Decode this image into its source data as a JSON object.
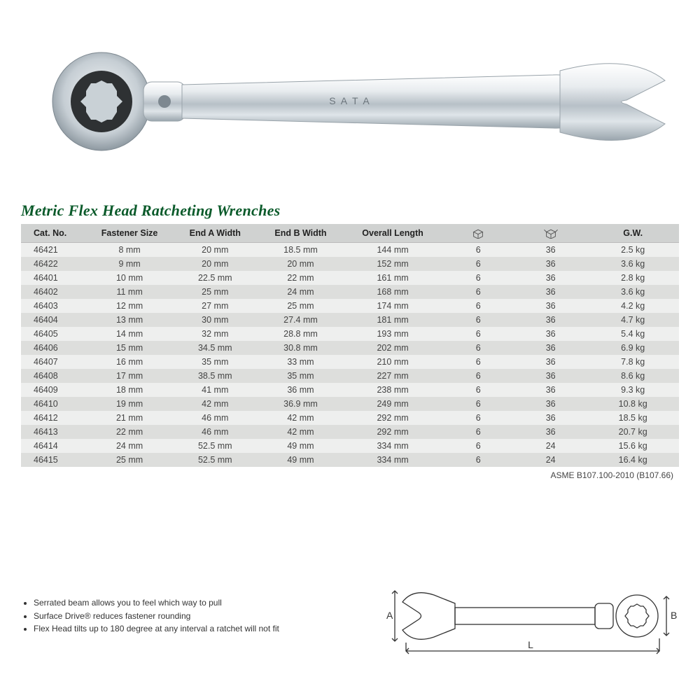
{
  "title": "Metric Flex Head Ratcheting Wrenches",
  "standard": "ASME B107.100-2010 (B107.66)",
  "table": {
    "columns": [
      "Cat. No.",
      "Fastener Size",
      "End A Width",
      "End B Width",
      "Overall Length",
      "__box_closed__",
      "__box_open__",
      "G.W."
    ],
    "col_widths_pct": [
      10,
      13,
      13,
      13,
      15,
      11,
      11,
      14
    ],
    "header_bg": "#d0d2d1",
    "row_even_bg": "#eeefee",
    "row_odd_bg": "#dddedc",
    "text_color": "#444444",
    "rows": [
      [
        "46421",
        "8 mm",
        "20 mm",
        "18.5 mm",
        "144 mm",
        "6",
        "36",
        "2.5 kg"
      ],
      [
        "46422",
        "9 mm",
        "20 mm",
        "20 mm",
        "152 mm",
        "6",
        "36",
        "3.6 kg"
      ],
      [
        "46401",
        "10 mm",
        "22.5 mm",
        "22 mm",
        "161 mm",
        "6",
        "36",
        "2.8 kg"
      ],
      [
        "46402",
        "11 mm",
        "25 mm",
        "24 mm",
        "168 mm",
        "6",
        "36",
        "3.6 kg"
      ],
      [
        "46403",
        "12 mm",
        "27 mm",
        "25 mm",
        "174 mm",
        "6",
        "36",
        "4.2 kg"
      ],
      [
        "46404",
        "13 mm",
        "30 mm",
        "27.4 mm",
        "181 mm",
        "6",
        "36",
        "4.7 kg"
      ],
      [
        "46405",
        "14 mm",
        "32 mm",
        "28.8 mm",
        "193 mm",
        "6",
        "36",
        "5.4 kg"
      ],
      [
        "46406",
        "15 mm",
        "34.5 mm",
        "30.8 mm",
        "202 mm",
        "6",
        "36",
        "6.9 kg"
      ],
      [
        "46407",
        "16 mm",
        "35 mm",
        "33 mm",
        "210 mm",
        "6",
        "36",
        "7.8 kg"
      ],
      [
        "46408",
        "17 mm",
        "38.5 mm",
        "35 mm",
        "227 mm",
        "6",
        "36",
        "8.6 kg"
      ],
      [
        "46409",
        "18 mm",
        "41 mm",
        "36 mm",
        "238 mm",
        "6",
        "36",
        "9.3 kg"
      ],
      [
        "46410",
        "19 mm",
        "42 mm",
        "36.9 mm",
        "249 mm",
        "6",
        "36",
        "10.8 kg"
      ],
      [
        "46412",
        "21 mm",
        "46 mm",
        "42 mm",
        "292 mm",
        "6",
        "36",
        "18.5 kg"
      ],
      [
        "46413",
        "22 mm",
        "46 mm",
        "42 mm",
        "292 mm",
        "6",
        "36",
        "20.7 kg"
      ],
      [
        "46414",
        "24 mm",
        "52.5 mm",
        "49 mm",
        "334 mm",
        "6",
        "24",
        "15.6 kg"
      ],
      [
        "46415",
        "25 mm",
        "52.5 mm",
        "49 mm",
        "334 mm",
        "6",
        "24",
        "16.4 kg"
      ]
    ]
  },
  "bullets": [
    "Serrated beam allows you to feel which way to pull",
    "Surface Drive® reduces fastener rounding",
    "Flex Head tilts up to 180 degree at any interval a ratchet will not fit"
  ],
  "diagram_labels": {
    "A": "A",
    "B": "B",
    "L": "L"
  },
  "icons": {
    "box_closed": "closed-box-icon",
    "box_open": "open-box-icon"
  },
  "colors": {
    "title": "#0a5a2a",
    "background": "#ffffff",
    "diagram_stroke": "#333333"
  }
}
